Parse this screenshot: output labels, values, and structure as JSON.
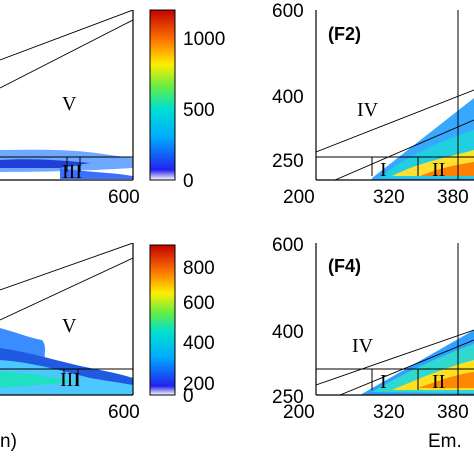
{
  "chart_data": [
    {
      "id": "F1",
      "type": "heatmap",
      "subtype": "excitation-emission contour (cropped)",
      "panel_label": "",
      "x_tick_labels": [
        "600"
      ],
      "y_tick_labels": [],
      "region_labels": [
        "V",
        "III"
      ],
      "colorbar": {
        "ticks": [
          "0",
          "500",
          "1000"
        ],
        "range": [
          0,
          1200
        ]
      }
    },
    {
      "id": "F2",
      "type": "heatmap",
      "subtype": "excitation-emission contour (cropped)",
      "panel_label": "(F2)",
      "x_tick_labels": [
        "200",
        "320",
        "380"
      ],
      "y_tick_labels": [
        "600",
        "400",
        "250"
      ],
      "region_labels": [
        "IV",
        "I",
        "II"
      ],
      "xlim": [
        200,
        600
      ],
      "ylim": [
        200,
        600
      ]
    },
    {
      "id": "F3",
      "type": "heatmap",
      "subtype": "excitation-emission contour (cropped)",
      "panel_label": "",
      "x_tick_labels": [
        "600"
      ],
      "y_tick_labels": [],
      "region_labels": [
        "V",
        "III"
      ],
      "xlabel_fragment": "n)",
      "colorbar": {
        "ticks": [
          "0",
          "200",
          "400",
          "600",
          "800"
        ],
        "range": [
          0,
          900
        ]
      }
    },
    {
      "id": "F4",
      "type": "heatmap",
      "subtype": "excitation-emission contour (cropped)",
      "panel_label": "(F4)",
      "x_tick_labels": [
        "200",
        "320",
        "380"
      ],
      "y_tick_labels": [
        "600",
        "400",
        "250"
      ],
      "region_labels": [
        "IV",
        "I",
        "II"
      ],
      "xlabel_fragment": "Em.",
      "xlim": [
        200,
        600
      ],
      "ylim": [
        200,
        600
      ]
    }
  ]
}
